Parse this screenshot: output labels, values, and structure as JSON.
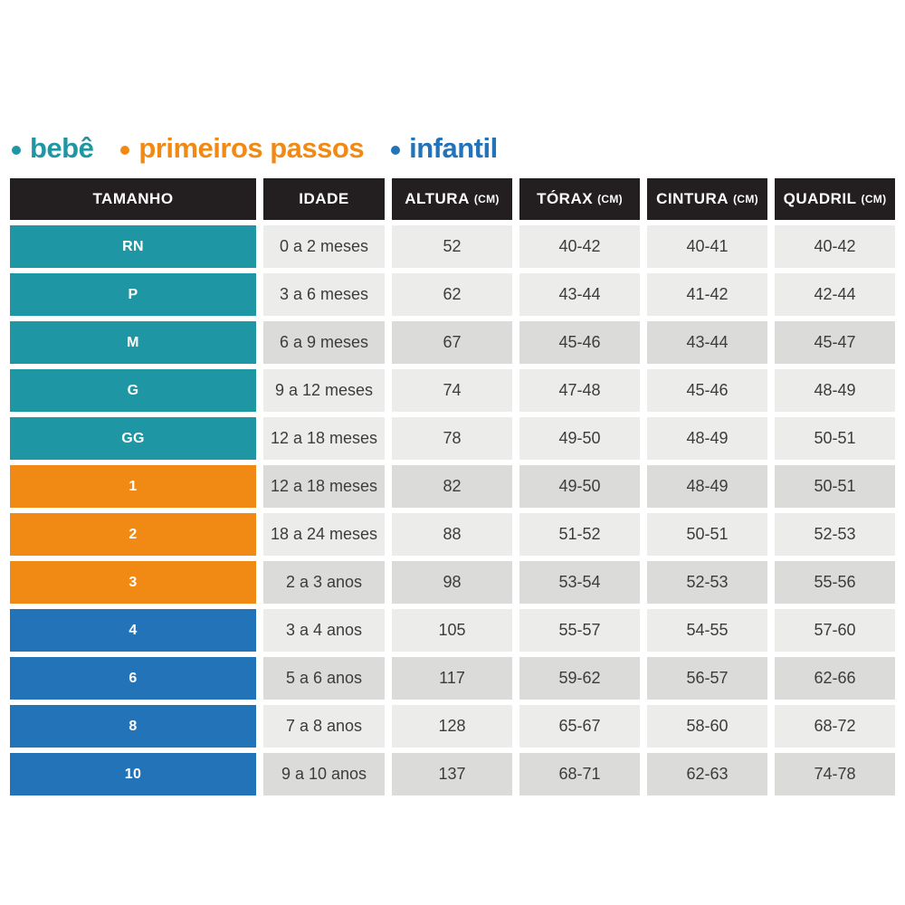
{
  "page": {
    "background": "#ffffff"
  },
  "legend": {
    "items": [
      {
        "label": "bebê",
        "color": "#1f96a3"
      },
      {
        "label": "primeiros passos",
        "color": "#f08a15"
      },
      {
        "label": "infantil",
        "color": "#2273b8"
      }
    ]
  },
  "table": {
    "header_bg": "#231f20",
    "cell_bg_light": "#ececea",
    "cell_bg_dark": "#dbdbd9",
    "row_colors": {
      "bebe": "#1f96a3",
      "primeiros_passos": "#f08a15",
      "infantil": "#2273b8"
    },
    "columns": [
      {
        "label": "TAMANHO",
        "unit": ""
      },
      {
        "label": "IDADE",
        "unit": ""
      },
      {
        "label": "ALTURA",
        "unit": "(CM)"
      },
      {
        "label": "TÓRAX",
        "unit": "(CM)"
      },
      {
        "label": "CINTURA",
        "unit": "(CM)"
      },
      {
        "label": "QUADRIL",
        "unit": "(CM)"
      }
    ],
    "rows": [
      {
        "size": "RN",
        "group": "bebe",
        "shade": "light",
        "idade": "0 a 2 meses",
        "altura": "52",
        "torax": "40-42",
        "cintura": "40-41",
        "quadril": "40-42"
      },
      {
        "size": "P",
        "group": "bebe",
        "shade": "light",
        "idade": "3 a 6 meses",
        "altura": "62",
        "torax": "43-44",
        "cintura": "41-42",
        "quadril": "42-44"
      },
      {
        "size": "M",
        "group": "bebe",
        "shade": "dark",
        "idade": "6 a 9 meses",
        "altura": "67",
        "torax": "45-46",
        "cintura": "43-44",
        "quadril": "45-47"
      },
      {
        "size": "G",
        "group": "bebe",
        "shade": "light",
        "idade": "9 a 12 meses",
        "altura": "74",
        "torax": "47-48",
        "cintura": "45-46",
        "quadril": "48-49"
      },
      {
        "size": "GG",
        "group": "bebe",
        "shade": "light",
        "idade": "12 a 18 meses",
        "altura": "78",
        "torax": "49-50",
        "cintura": "48-49",
        "quadril": "50-51"
      },
      {
        "size": "1",
        "group": "primeiros_passos",
        "shade": "dark",
        "idade": "12 a 18 meses",
        "altura": "82",
        "torax": "49-50",
        "cintura": "48-49",
        "quadril": "50-51"
      },
      {
        "size": "2",
        "group": "primeiros_passos",
        "shade": "light",
        "idade": "18 a 24 meses",
        "altura": "88",
        "torax": "51-52",
        "cintura": "50-51",
        "quadril": "52-53"
      },
      {
        "size": "3",
        "group": "primeiros_passos",
        "shade": "dark",
        "idade": "2 a 3 anos",
        "altura": "98",
        "torax": "53-54",
        "cintura": "52-53",
        "quadril": "55-56"
      },
      {
        "size": "4",
        "group": "infantil",
        "shade": "light",
        "idade": "3 a 4 anos",
        "altura": "105",
        "torax": "55-57",
        "cintura": "54-55",
        "quadril": "57-60"
      },
      {
        "size": "6",
        "group": "infantil",
        "shade": "dark",
        "idade": "5 a 6 anos",
        "altura": "117",
        "torax": "59-62",
        "cintura": "56-57",
        "quadril": "62-66"
      },
      {
        "size": "8",
        "group": "infantil",
        "shade": "light",
        "idade": "7 a 8 anos",
        "altura": "128",
        "torax": "65-67",
        "cintura": "58-60",
        "quadril": "68-72"
      },
      {
        "size": "10",
        "group": "infantil",
        "shade": "dark",
        "idade": "9 a 10 anos",
        "altura": "137",
        "torax": "68-71",
        "cintura": "62-63",
        "quadril": "74-78"
      }
    ]
  },
  "chart_data": {
    "type": "table",
    "title": "",
    "legend": [
      "bebê",
      "primeiros passos",
      "infantil"
    ],
    "legend_colors": [
      "#1f96a3",
      "#f08a15",
      "#2273b8"
    ],
    "columns": [
      "TAMANHO",
      "IDADE",
      "ALTURA (CM)",
      "TÓRAX (CM)",
      "CINTURA (CM)",
      "QUADRIL (CM)"
    ],
    "rows": [
      [
        "RN",
        "0 a 2 meses",
        "52",
        "40-42",
        "40-41",
        "40-42"
      ],
      [
        "P",
        "3 a 6 meses",
        "62",
        "43-44",
        "41-42",
        "42-44"
      ],
      [
        "M",
        "6 a 9 meses",
        "67",
        "45-46",
        "43-44",
        "45-47"
      ],
      [
        "G",
        "9 a 12 meses",
        "74",
        "47-48",
        "45-46",
        "48-49"
      ],
      [
        "GG",
        "12 a 18 meses",
        "78",
        "49-50",
        "48-49",
        "50-51"
      ],
      [
        "1",
        "12 a 18 meses",
        "82",
        "49-50",
        "48-49",
        "50-51"
      ],
      [
        "2",
        "18 a 24 meses",
        "88",
        "51-52",
        "50-51",
        "52-53"
      ],
      [
        "3",
        "2 a 3 anos",
        "98",
        "53-54",
        "52-53",
        "55-56"
      ],
      [
        "4",
        "3 a 4 anos",
        "105",
        "55-57",
        "54-55",
        "57-60"
      ],
      [
        "6",
        "5 a 6 anos",
        "117",
        "59-62",
        "56-57",
        "62-66"
      ],
      [
        "8",
        "7 a 8 anos",
        "128",
        "65-67",
        "58-60",
        "68-72"
      ],
      [
        "10",
        "9 a 10 anos",
        "137",
        "68-71",
        "62-63",
        "74-78"
      ]
    ],
    "row_group": [
      "bebê",
      "bebê",
      "bebê",
      "bebê",
      "bebê",
      "primeiros passos",
      "primeiros passos",
      "primeiros passos",
      "infantil",
      "infantil",
      "infantil",
      "infantil"
    ],
    "layout": {
      "legend_position": "top-left",
      "grid": false
    }
  }
}
